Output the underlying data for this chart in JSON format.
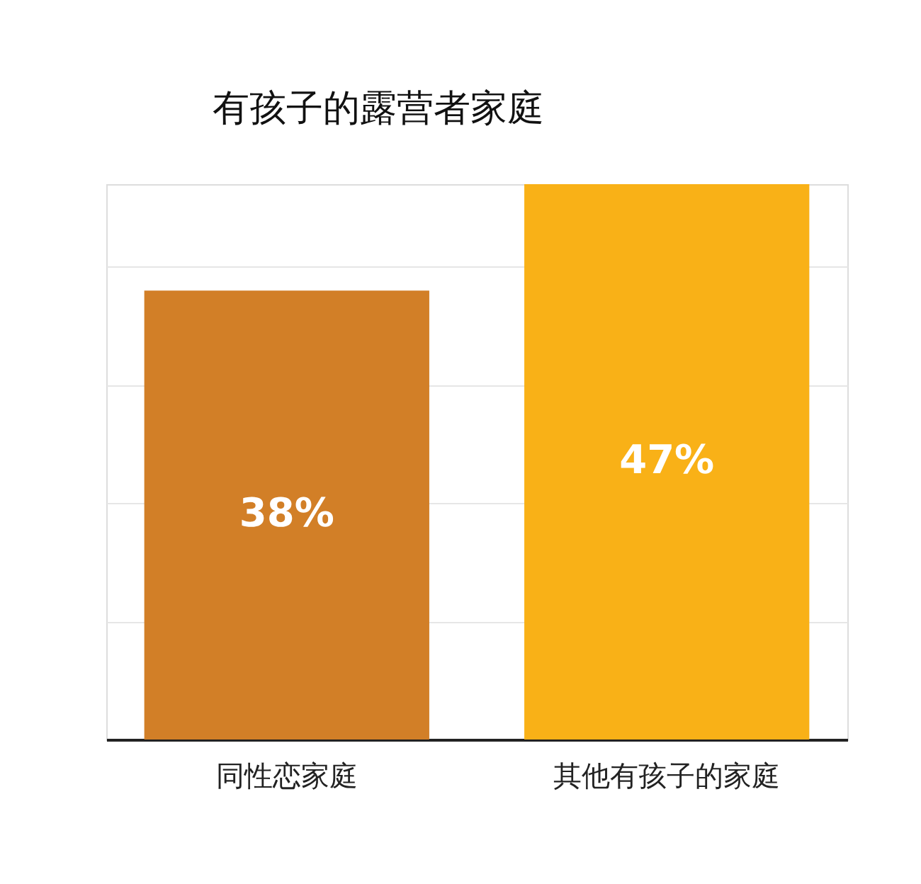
{
  "chart_data": {
    "type": "bar",
    "title": "有孩子的露营者家庭",
    "categories": [
      "同性恋家庭",
      "其他有孩子的家庭"
    ],
    "values": [
      38,
      47
    ],
    "colors": [
      "#d27f27",
      "#f9b117"
    ],
    "value_labels": [
      "38%",
      "47%"
    ],
    "ylim": [
      0,
      47
    ],
    "yticks": [
      {
        "value": 10,
        "label": null
      },
      {
        "value": 20,
        "label": null
      },
      {
        "value": 30,
        "label": null
      },
      {
        "value": 40,
        "label": null
      }
    ],
    "grid": "y",
    "tick_labels": "x"
  }
}
